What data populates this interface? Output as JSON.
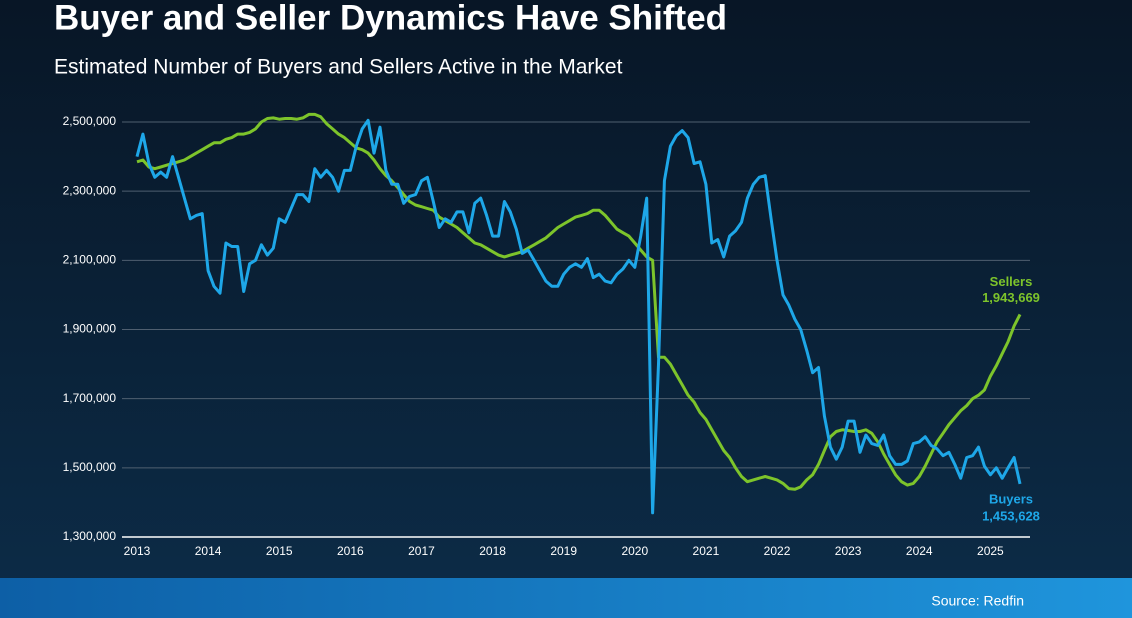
{
  "chart_data": {
    "type": "line",
    "title": "Buyer and Seller Dynamics Have Shifted",
    "subtitle": "Estimated Number of Buyers and Sellers Active in the Market",
    "source": "Source: Redfin",
    "categories": [
      "2013",
      null,
      null,
      null,
      null,
      null,
      null,
      null,
      null,
      null,
      null,
      null,
      "2014",
      null,
      null,
      null,
      null,
      null,
      null,
      null,
      null,
      null,
      null,
      null,
      "2015",
      null,
      null,
      null,
      null,
      null,
      null,
      null,
      null,
      null,
      null,
      null,
      "2016",
      null,
      null,
      null,
      null,
      null,
      null,
      null,
      null,
      null,
      null,
      null,
      "2017",
      null,
      null,
      null,
      null,
      null,
      null,
      null,
      null,
      null,
      null,
      null,
      "2018",
      null,
      null,
      null,
      null,
      null,
      null,
      null,
      null,
      null,
      null,
      null,
      "2019",
      null,
      null,
      null,
      null,
      null,
      null,
      null,
      null,
      null,
      null,
      null,
      "2020",
      null,
      null,
      null,
      null,
      null,
      null,
      null,
      null,
      null,
      null,
      null,
      "2021",
      null,
      null,
      null,
      null,
      null,
      null,
      null,
      null,
      null,
      null,
      null,
      "2022",
      null,
      null,
      null,
      null,
      null,
      null,
      null,
      null,
      null,
      null,
      null,
      "2023",
      null,
      null,
      null,
      null,
      null,
      null,
      null,
      null,
      null,
      null,
      null,
      "2024",
      null,
      null,
      null,
      null,
      null,
      null,
      null,
      null,
      null,
      null,
      null,
      "2025",
      null,
      null,
      null,
      null,
      null
    ],
    "series": [
      {
        "name": "Sellers",
        "color": "#7dc42b",
        "last_label": "1,943,669",
        "values": [
          2385000,
          2390000,
          2370000,
          2365000,
          2370000,
          2375000,
          2380000,
          2385000,
          2390000,
          2400000,
          2410000,
          2420000,
          2430000,
          2440000,
          2440000,
          2450000,
          2455000,
          2465000,
          2465000,
          2470000,
          2480000,
          2500000,
          2510000,
          2512000,
          2508000,
          2510000,
          2510000,
          2508000,
          2512000,
          2522000,
          2522000,
          2515000,
          2495000,
          2480000,
          2465000,
          2455000,
          2440000,
          2425000,
          2420000,
          2410000,
          2390000,
          2365000,
          2345000,
          2330000,
          2310000,
          2290000,
          2270000,
          2260000,
          2255000,
          2250000,
          2245000,
          2225000,
          2215000,
          2205000,
          2195000,
          2180000,
          2165000,
          2150000,
          2145000,
          2135000,
          2125000,
          2115000,
          2110000,
          2115000,
          2120000,
          2125000,
          2135000,
          2145000,
          2155000,
          2165000,
          2180000,
          2195000,
          2205000,
          2215000,
          2225000,
          2230000,
          2235000,
          2245000,
          2245000,
          2230000,
          2210000,
          2190000,
          2180000,
          2170000,
          2150000,
          2130000,
          2110000,
          2100000,
          1820000,
          1820000,
          1800000,
          1770000,
          1740000,
          1710000,
          1690000,
          1660000,
          1640000,
          1610000,
          1580000,
          1550000,
          1530000,
          1500000,
          1475000,
          1460000,
          1465000,
          1470000,
          1475000,
          1470000,
          1465000,
          1455000,
          1440000,
          1438000,
          1445000,
          1465000,
          1480000,
          1510000,
          1550000,
          1590000,
          1605000,
          1610000,
          1608000,
          1605000,
          1605000,
          1610000,
          1600000,
          1575000,
          1540000,
          1510000,
          1480000,
          1460000,
          1450000,
          1455000,
          1475000,
          1505000,
          1540000,
          1575000,
          1600000,
          1625000,
          1645000,
          1665000,
          1680000,
          1700000,
          1710000,
          1725000,
          1765000,
          1795000,
          1830000,
          1865000,
          1910000,
          1943669
        ]
      },
      {
        "name": "Buyers",
        "color": "#1ea7e8",
        "last_label": "1,453,628",
        "values": [
          2400000,
          2465000,
          2380000,
          2340000,
          2355000,
          2340000,
          2400000,
          2340000,
          2280000,
          2220000,
          2230000,
          2235000,
          2070000,
          2025000,
          2005000,
          2150000,
          2140000,
          2140000,
          2010000,
          2090000,
          2100000,
          2145000,
          2115000,
          2135000,
          2220000,
          2210000,
          2250000,
          2290000,
          2290000,
          2270000,
          2365000,
          2340000,
          2360000,
          2340000,
          2300000,
          2360000,
          2360000,
          2430000,
          2480000,
          2505000,
          2410000,
          2485000,
          2360000,
          2320000,
          2320000,
          2265000,
          2285000,
          2290000,
          2330000,
          2340000,
          2270000,
          2195000,
          2220000,
          2210000,
          2240000,
          2240000,
          2180000,
          2265000,
          2280000,
          2230000,
          2170000,
          2170000,
          2270000,
          2240000,
          2190000,
          2120000,
          2130000,
          2100000,
          2070000,
          2040000,
          2025000,
          2025000,
          2060000,
          2080000,
          2090000,
          2080000,
          2105000,
          2050000,
          2060000,
          2040000,
          2035000,
          2060000,
          2075000,
          2100000,
          2080000,
          2170000,
          2280000,
          1370000,
          1800000,
          2330000,
          2430000,
          2460000,
          2475000,
          2455000,
          2380000,
          2385000,
          2320000,
          2150000,
          2160000,
          2110000,
          2170000,
          2185000,
          2210000,
          2280000,
          2320000,
          2340000,
          2345000,
          2220000,
          2100000,
          2000000,
          1970000,
          1930000,
          1900000,
          1840000,
          1775000,
          1790000,
          1650000,
          1560000,
          1525000,
          1560000,
          1635000,
          1635000,
          1545000,
          1595000,
          1570000,
          1565000,
          1595000,
          1535000,
          1510000,
          1510000,
          1520000,
          1570000,
          1575000,
          1590000,
          1565000,
          1555000,
          1535000,
          1545000,
          1510000,
          1470000,
          1530000,
          1535000,
          1560000,
          1505000,
          1480000,
          1500000,
          1470000,
          1500000,
          1530000,
          1453628
        ]
      }
    ],
    "ylim": [
      1300000,
      2500000
    ],
    "yticks": [
      {
        "value": 1300000,
        "label": "1,300,000"
      },
      {
        "value": 1500000,
        "label": "1,500,000"
      },
      {
        "value": 1700000,
        "label": "1,700,000"
      },
      {
        "value": 1900000,
        "label": "1,900,000"
      },
      {
        "value": 2100000,
        "label": "2,100,000"
      },
      {
        "value": 2300000,
        "label": "2,300,000"
      },
      {
        "value": 2500000,
        "label": "2,500,000"
      }
    ],
    "grid": true
  }
}
